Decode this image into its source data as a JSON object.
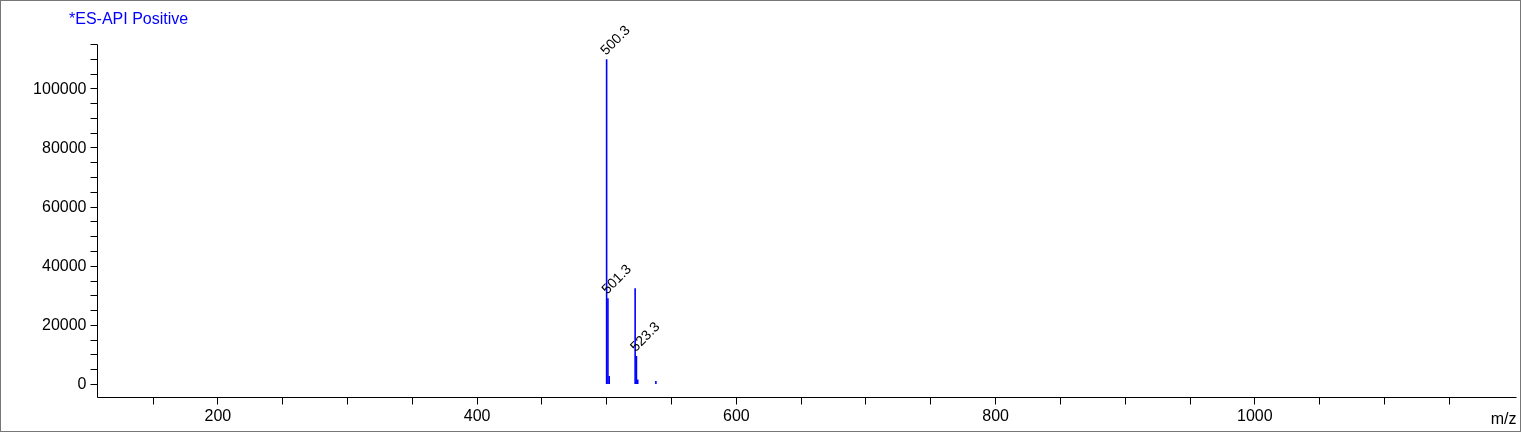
{
  "chart_data": {
    "type": "bar",
    "title": "*ES-API Positive",
    "xlabel": "m/z",
    "x": [
      500.3,
      501.3,
      502.3,
      522.3,
      523.3,
      524.3,
      538.3
    ],
    "series": [
      {
        "color": "#0000ff",
        "values": [
          109800,
          29000,
          2700,
          32400,
          9500,
          1500,
          1000
        ]
      }
    ],
    "annotations": [
      {
        "text": "500.3",
        "x": 500.3,
        "y": 109800
      },
      {
        "text": "501.3",
        "x": 501.3,
        "y": 29000
      },
      {
        "text": "523.3",
        "x": 523.3,
        "y": 9500
      }
    ],
    "xlim": [
      111,
      1198
    ],
    "xticks": [
      {
        "value": 150,
        "label": null
      },
      200,
      {
        "value": 250,
        "label": null
      },
      {
        "value": 300,
        "label": null
      },
      {
        "value": 350,
        "label": null
      },
      400,
      {
        "value": 450,
        "label": null
      },
      {
        "value": 500,
        "label": null
      },
      {
        "value": 550,
        "label": null
      },
      600,
      {
        "value": 650,
        "label": null
      },
      {
        "value": 700,
        "label": null
      },
      {
        "value": 750,
        "label": null
      },
      800,
      {
        "value": 850,
        "label": null
      },
      {
        "value": 900,
        "label": null
      },
      {
        "value": 950,
        "label": null
      },
      1000,
      {
        "value": 1050,
        "label": null
      },
      {
        "value": 1100,
        "label": null
      },
      {
        "value": 1150,
        "label": null
      }
    ],
    "ylim": [
      -4400,
      115000
    ],
    "yticks": [
      0,
      {
        "value": 5000,
        "label": null
      },
      {
        "value": 10000,
        "label": null
      },
      {
        "value": 15000,
        "label": null
      },
      20000,
      {
        "value": 25000,
        "label": null
      },
      {
        "value": 30000,
        "label": null
      },
      {
        "value": 35000,
        "label": null
      },
      40000,
      {
        "value": 45000,
        "label": null
      },
      {
        "value": 50000,
        "label": null
      },
      {
        "value": 55000,
        "label": null
      },
      60000,
      {
        "value": 65000,
        "label": null
      },
      {
        "value": 70000,
        "label": null
      },
      {
        "value": 75000,
        "label": null
      },
      80000,
      {
        "value": 85000,
        "label": null
      },
      {
        "value": 90000,
        "label": null
      },
      {
        "value": 95000,
        "label": null
      },
      100000,
      {
        "value": 105000,
        "label": null
      },
      {
        "value": 110000,
        "label": null
      },
      {
        "value": 115000,
        "label": null
      }
    ],
    "grid": false
  }
}
